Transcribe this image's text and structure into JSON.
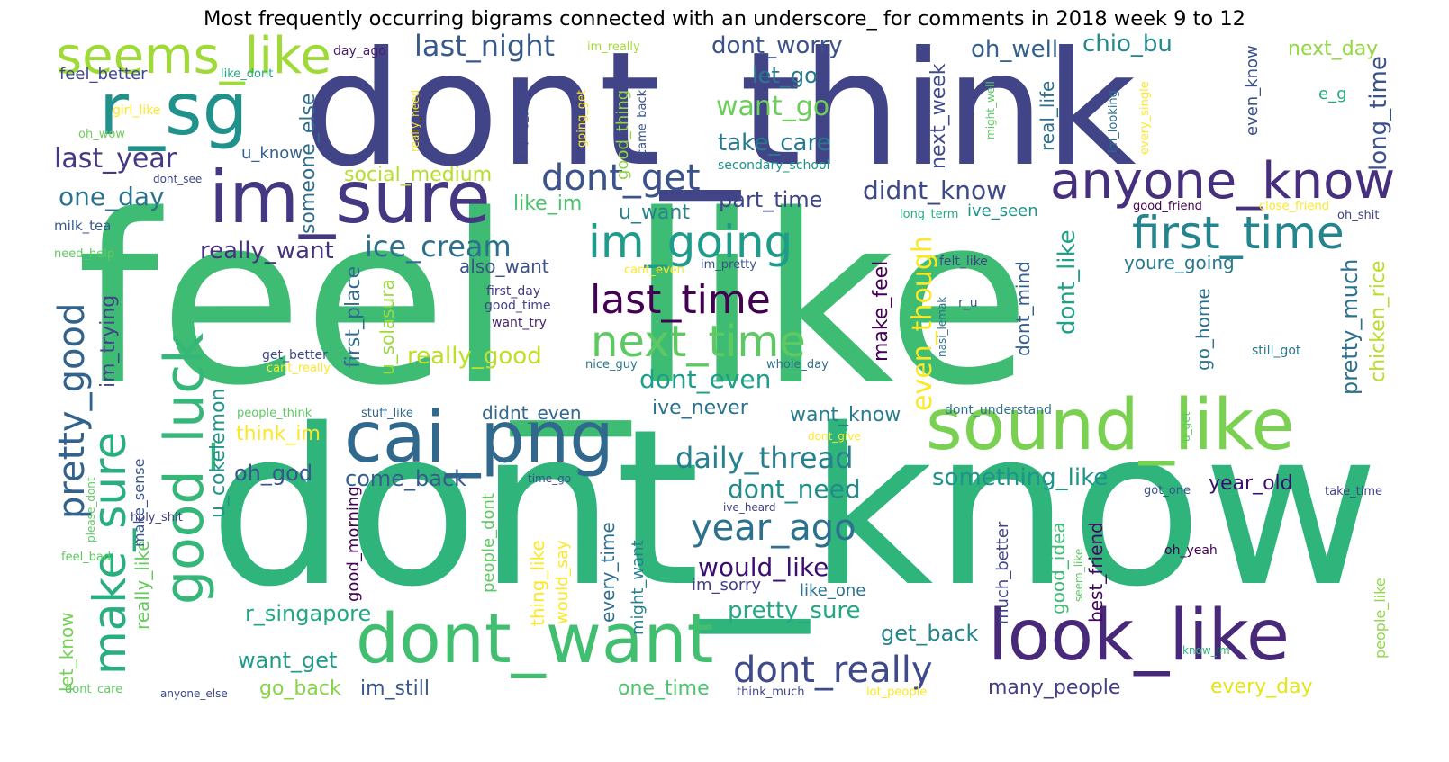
{
  "title": "Most frequently occurring bigrams connected with an underscore_ for comments in 2018 week 9 to 12",
  "words": [
    {
      "text": "feel_like",
      "color": "#3fbc73"
    },
    {
      "text": "dont_know",
      "color": "#2fb47c"
    },
    {
      "text": "dont_think",
      "color": "#414487"
    },
    {
      "text": "im_sure",
      "color": "#453781"
    },
    {
      "text": "cai_png",
      "color": "#31688e"
    },
    {
      "text": "sound_like",
      "color": "#7ad151"
    },
    {
      "text": "look_like",
      "color": "#482878"
    },
    {
      "text": "dont_want",
      "color": "#42be71"
    },
    {
      "text": "anyone_know",
      "color": "#46307e"
    },
    {
      "text": "good_luck",
      "color": "#35b779"
    },
    {
      "text": "r_sg",
      "color": "#21918c"
    },
    {
      "text": "seems_like",
      "color": "#a0da39"
    },
    {
      "text": "first_time",
      "color": "#25858e"
    },
    {
      "text": "im_going",
      "color": "#1e9b8a"
    },
    {
      "text": "next_time",
      "color": "#5ec962"
    },
    {
      "text": "last_time",
      "color": "#440154"
    },
    {
      "text": "make_sure",
      "color": "#29af7f"
    },
    {
      "text": "pretty_good",
      "color": "#33638d"
    },
    {
      "text": "dont_get",
      "color": "#3b528b"
    },
    {
      "text": "year_ago",
      "color": "#2c728e"
    },
    {
      "text": "dont_really",
      "color": "#3e4a89"
    },
    {
      "text": "last_night",
      "color": "#38598c"
    },
    {
      "text": "ice_cream",
      "color": "#2d708e"
    },
    {
      "text": "daily_thread",
      "color": "#27808e"
    },
    {
      "text": "last_year",
      "color": "#443983"
    },
    {
      "text": "didnt_know",
      "color": "#3e4989"
    },
    {
      "text": "want_go",
      "color": "#6ccd5a"
    },
    {
      "text": "even_though",
      "color": "#fde725"
    },
    {
      "text": "dont_even",
      "color": "#1f9e89"
    },
    {
      "text": "dont_need",
      "color": "#228c8d"
    },
    {
      "text": "would_like",
      "color": "#3b0f70"
    },
    {
      "text": "pretty_sure",
      "color": "#22a884"
    },
    {
      "text": "something_like",
      "color": "#1f948c"
    },
    {
      "text": "one_day",
      "color": "#2c728e"
    },
    {
      "text": "dont_worry",
      "color": "#3b528b"
    },
    {
      "text": "take_care",
      "color": "#2a788e"
    },
    {
      "text": "oh_well",
      "color": "#355f8d"
    },
    {
      "text": "chio_bu",
      "color": "#23898e"
    },
    {
      "text": "really_want",
      "color": "#46327e"
    },
    {
      "text": "social_medium",
      "color": "#b5de2b"
    },
    {
      "text": "let_go",
      "color": "#2a788e"
    },
    {
      "text": "dont_like",
      "color": "#1fa187"
    },
    {
      "text": "long_time",
      "color": "#3b528b"
    },
    {
      "text": "next_day",
      "color": "#93d741"
    },
    {
      "text": "pretty_much",
      "color": "#2c728e"
    },
    {
      "text": "chicken_rice",
      "color": "#b8de29"
    },
    {
      "text": "part_time",
      "color": "#404688"
    },
    {
      "text": "really_good",
      "color": "#bddf26"
    },
    {
      "text": "im_trying",
      "color": "#414487"
    },
    {
      "text": "first_place",
      "color": "#306a8e"
    },
    {
      "text": "u_cokelemon",
      "color": "#1f958b"
    },
    {
      "text": "u_solasura",
      "color": "#9bd93c"
    },
    {
      "text": "make_feel",
      "color": "#440154"
    },
    {
      "text": "next_week",
      "color": "#3e4a89"
    },
    {
      "text": "someone_else",
      "color": "#2e6e8e"
    },
    {
      "text": "youre_going",
      "color": "#2a788e"
    },
    {
      "text": "want_know",
      "color": "#287c8e"
    },
    {
      "text": "ive_never",
      "color": "#2d708e"
    },
    {
      "text": "didnt_even",
      "color": "#31688e"
    },
    {
      "text": "come_back",
      "color": "#365c8d"
    },
    {
      "text": "also_want",
      "color": "#3b528b"
    },
    {
      "text": "think_im",
      "color": "#fde725"
    },
    {
      "text": "oh_god",
      "color": "#39568c"
    },
    {
      "text": "like_im",
      "color": "#4ac16d"
    },
    {
      "text": "u_want",
      "color": "#26828e"
    },
    {
      "text": "get_back",
      "color": "#25848e"
    },
    {
      "text": "r_singapore",
      "color": "#22a785"
    },
    {
      "text": "want_get",
      "color": "#1e9c89"
    },
    {
      "text": "go_back",
      "color": "#86d549"
    },
    {
      "text": "im_still",
      "color": "#38598c"
    },
    {
      "text": "one_time",
      "color": "#4ec36b"
    },
    {
      "text": "many_people",
      "color": "#433e85"
    },
    {
      "text": "every_day",
      "color": "#e5e419"
    },
    {
      "text": "year_old",
      "color": "#3b0f70"
    },
    {
      "text": "go_home",
      "color": "#2c728e"
    },
    {
      "text": "dont_mind",
      "color": "#355f8d"
    },
    {
      "text": "real_life",
      "color": "#2d708e"
    },
    {
      "text": "even_know",
      "color": "#3b528b"
    },
    {
      "text": "e_g",
      "color": "#23a983"
    },
    {
      "text": "good_thing",
      "color": "#8fd744"
    },
    {
      "text": "feel_better",
      "color": "#3e4989"
    },
    {
      "text": "like_one",
      "color": "#2c728e"
    },
    {
      "text": "im_sorry",
      "color": "#433e85"
    },
    {
      "text": "might_want",
      "color": "#27808e"
    },
    {
      "text": "every_time",
      "color": "#2e6f8e"
    },
    {
      "text": "would_say",
      "color": "#fde725"
    },
    {
      "text": "thing_like",
      "color": "#fde725"
    },
    {
      "text": "people_dont",
      "color": "#5ec962"
    },
    {
      "text": "good_morning",
      "color": "#440154"
    },
    {
      "text": "much_better",
      "color": "#404688"
    },
    {
      "text": "good_idea",
      "color": "#3dbc74"
    },
    {
      "text": "best_friend",
      "color": "#46085c"
    },
    {
      "text": "people_like",
      "color": "#8fd744"
    },
    {
      "text": "let_know",
      "color": "#73d056"
    },
    {
      "text": "really_like",
      "color": "#65cb5e"
    },
    {
      "text": "make_sense",
      "color": "#39568c"
    },
    {
      "text": "u_know",
      "color": "#34618d"
    },
    {
      "text": "secondary_school",
      "color": "#20928c"
    },
    {
      "text": "ive_seen",
      "color": "#20928c"
    },
    {
      "text": "milk_tea",
      "color": "#37598c"
    },
    {
      "text": "need_help",
      "color": "#5ec962"
    },
    {
      "text": "girl_like",
      "color": "#fde725"
    },
    {
      "text": "oh_wow",
      "color": "#6ece58"
    },
    {
      "text": "like_dont",
      "color": "#24aa83"
    },
    {
      "text": "day_ago",
      "color": "#481c6e"
    },
    {
      "text": "im_really",
      "color": "#a5db36"
    },
    {
      "text": "really_need",
      "color": "#fde725"
    },
    {
      "text": "trying_get",
      "color": "#3e4a89"
    },
    {
      "text": "going_get",
      "color": "#fde725"
    },
    {
      "text": "came_back",
      "color": "#3b528b"
    },
    {
      "text": "might_well",
      "color": "#5ec962"
    },
    {
      "text": "im_looking",
      "color": "#2d708e"
    },
    {
      "text": "every_single",
      "color": "#fde725"
    },
    {
      "text": "dont_see",
      "color": "#3e4989"
    },
    {
      "text": "long_term",
      "color": "#25ab82"
    },
    {
      "text": "good_friend",
      "color": "#440154"
    },
    {
      "text": "close_friend",
      "color": "#fde725"
    },
    {
      "text": "oh_shit",
      "color": "#414487"
    },
    {
      "text": "cant_even",
      "color": "#fde725"
    },
    {
      "text": "im_pretty",
      "color": "#3b528b"
    },
    {
      "text": "felt_like",
      "color": "#404688"
    },
    {
      "text": "r_u",
      "color": "#38598c"
    },
    {
      "text": "first_day",
      "color": "#443983"
    },
    {
      "text": "good_time",
      "color": "#414487"
    },
    {
      "text": "want_try",
      "color": "#482374"
    },
    {
      "text": "nice_guy",
      "color": "#2a788e"
    },
    {
      "text": "whole_day",
      "color": "#2d708e"
    },
    {
      "text": "nasi_lemak",
      "color": "#2d708e"
    },
    {
      "text": "still_got",
      "color": "#2a788e"
    },
    {
      "text": "get_better",
      "color": "#3e4989"
    },
    {
      "text": "cant_really",
      "color": "#fde725"
    },
    {
      "text": "people_think",
      "color": "#5ec962"
    },
    {
      "text": "stuff_like",
      "color": "#31688e"
    },
    {
      "text": "dont_understand",
      "color": "#2d708e"
    },
    {
      "text": "dont_give",
      "color": "#fde725"
    },
    {
      "text": "u_get",
      "color": "#5ec962"
    },
    {
      "text": "time_go",
      "color": "#3b528b"
    },
    {
      "text": "please_dont",
      "color": "#5ec962"
    },
    {
      "text": "holy_shit",
      "color": "#433e85"
    },
    {
      "text": "ive_heard",
      "color": "#414487"
    },
    {
      "text": "got_one",
      "color": "#3b528b"
    },
    {
      "text": "take_time",
      "color": "#414487"
    },
    {
      "text": "feel_bad",
      "color": "#5ec962"
    },
    {
      "text": "seem_like",
      "color": "#5ec962"
    },
    {
      "text": "oh_yeah",
      "color": "#440154"
    },
    {
      "text": "know_im",
      "color": "#2eb37c"
    },
    {
      "text": "dont_care",
      "color": "#5ec962"
    },
    {
      "text": "anyone_else",
      "color": "#3e4989"
    },
    {
      "text": "think_much",
      "color": "#414487"
    },
    {
      "text": "lot_people",
      "color": "#fde725"
    }
  ]
}
